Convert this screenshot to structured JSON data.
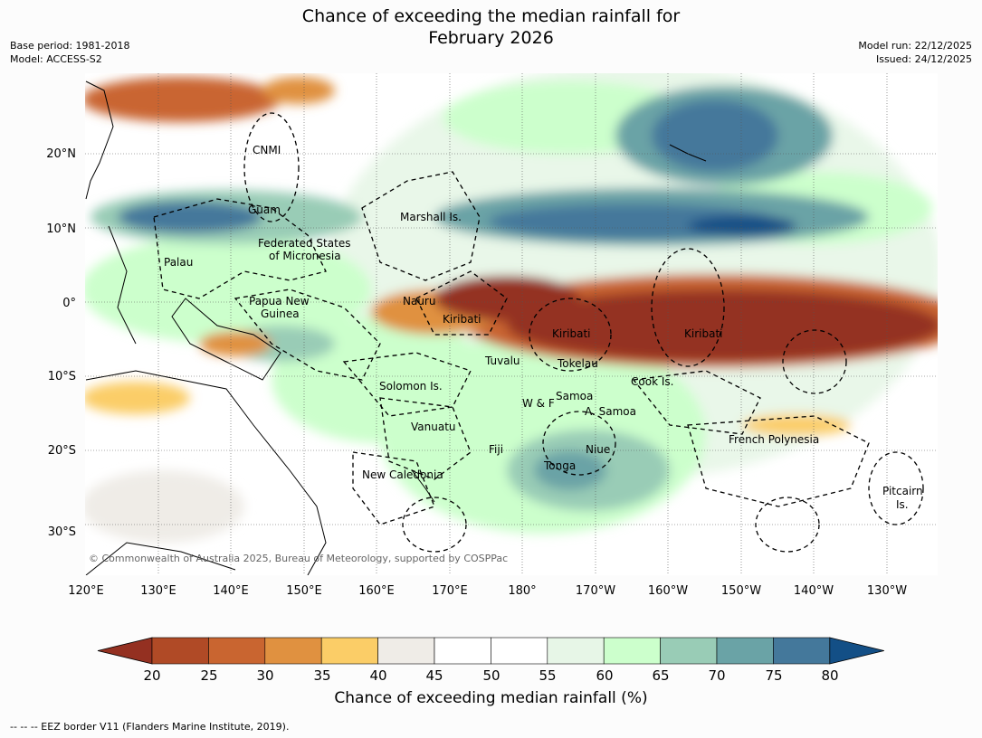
{
  "title_line1": "Chance of exceeding the median rainfall for",
  "title_line2": "February 2026",
  "base_period": "Base period: 1981-2018",
  "model": "Model: ACCESS-S2",
  "model_run": "Model run: 22/12/2025",
  "issued": "Issued: 24/12/2025",
  "copyright": "© Commonwealth of Australia 2025, Bureau of Meteorology, supported by COSPPac",
  "lon_ticks": [
    "120°E",
    "130°E",
    "140°E",
    "150°E",
    "160°E",
    "170°E",
    "180°",
    "170°W",
    "160°W",
    "150°W",
    "140°W",
    "130°W"
  ],
  "lat_ticks": [
    "20°N",
    "10°N",
    "0°",
    "10°S",
    "20°S",
    "30°S"
  ],
  "regions": [
    "CNMI",
    "Guam",
    "Marshall Is.",
    "Federated States",
    "of Micronesia",
    "Palau",
    "Papua New",
    "Guinea",
    "Nauru",
    "Kiribati",
    "Kiribati",
    "Kiribati",
    "Tuvalu",
    "Tokelau",
    "Cook Is.",
    "Solomon Is.",
    "W & F",
    "Samoa",
    "A. Samoa",
    "Vanuatu",
    "Fiji",
    "Niue",
    "Tonga",
    "French Polynesia",
    "New Caledonia",
    "Pitcairn",
    "Is."
  ],
  "colorbar": {
    "ticks": [
      "20",
      "25",
      "30",
      "35",
      "40",
      "45",
      "50",
      "55",
      "60",
      "65",
      "70",
      "75",
      "80"
    ],
    "colors": [
      "#943021",
      "#b04a26",
      "#c96530",
      "#e09140",
      "#fbcd67",
      "#efece7",
      "#ffffff",
      "#ffffff",
      "#e7f6e7",
      "#ccffcc",
      "#99ccb6",
      "#6aa3a6",
      "#44789b",
      "#134f86"
    ],
    "label": "Chance of exceeding median rainfall (%)"
  },
  "footnote": "--  --  -- EEZ border V11 (Flanders Marine Institute, 2019)."
}
